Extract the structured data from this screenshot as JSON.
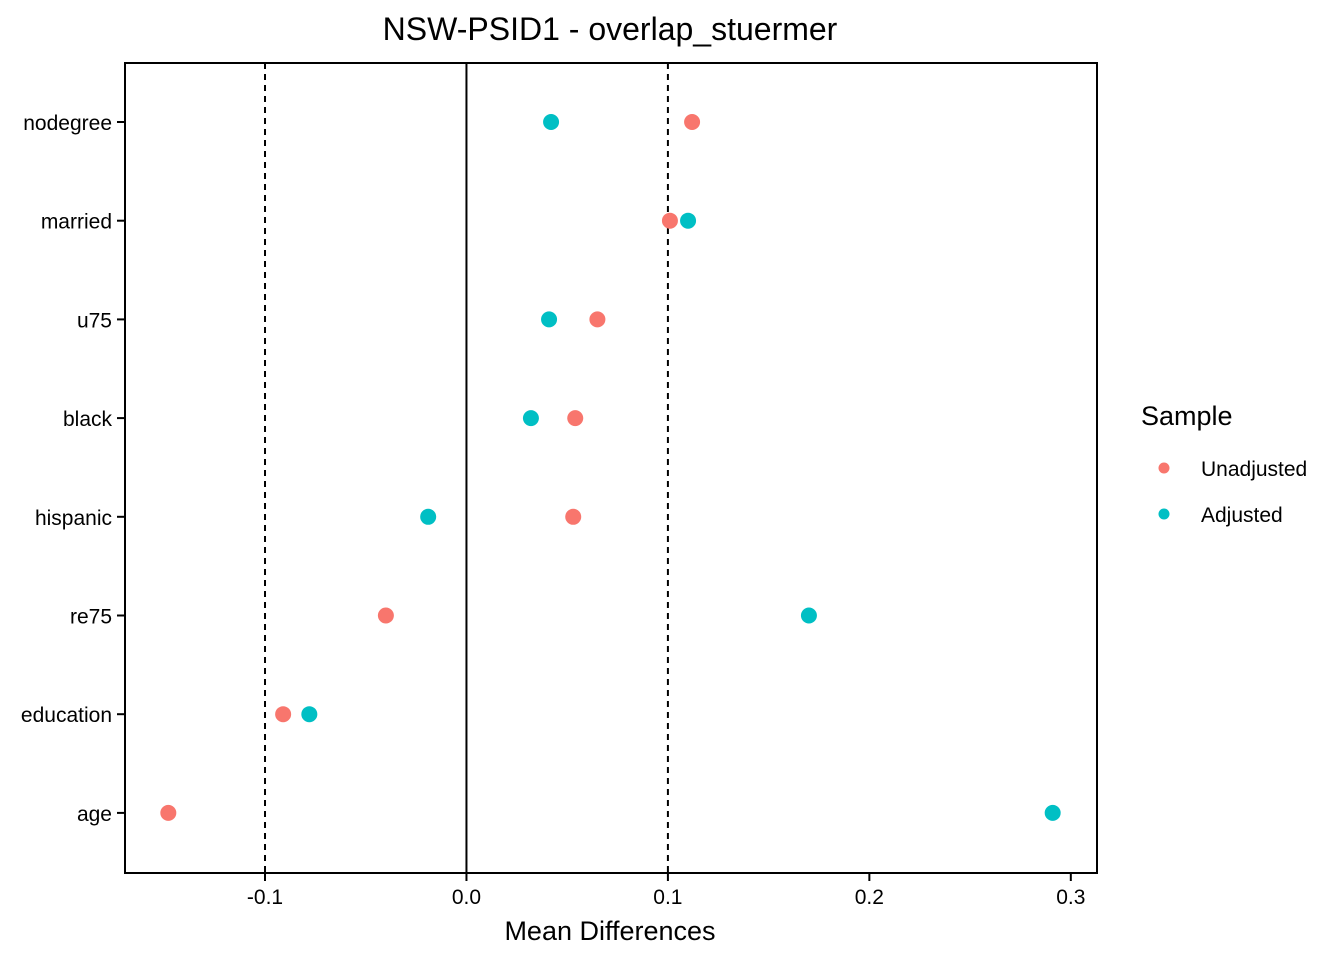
{
  "chart_data": {
    "type": "scatter",
    "title": "NSW-PSID1 - overlap_stuermer",
    "xlabel": "Mean Differences",
    "ylabel": "",
    "categories": [
      "nodegree",
      "married",
      "u75",
      "black",
      "hispanic",
      "re75",
      "education",
      "age"
    ],
    "xlim": [
      -0.1695,
      0.313
    ],
    "x_ticks": [
      -0.1,
      0.0,
      0.1,
      0.2,
      0.3
    ],
    "x_tick_labels": [
      "-0.1",
      "0.0",
      "0.1",
      "0.2",
      "0.3"
    ],
    "reference_lines": [
      {
        "x": -0.1,
        "style": "dashed"
      },
      {
        "x": 0.0,
        "style": "solid"
      },
      {
        "x": 0.1,
        "style": "dashed"
      }
    ],
    "grid": false,
    "legend": {
      "title": "Sample",
      "position": "right"
    },
    "series": [
      {
        "name": "Unadjusted",
        "color": "#F8766D",
        "values": [
          0.112,
          0.101,
          0.065,
          0.054,
          0.053,
          -0.04,
          -0.091,
          -0.148
        ]
      },
      {
        "name": "Adjusted",
        "color": "#00BFC4",
        "values": [
          0.042,
          0.11,
          0.041,
          0.032,
          -0.019,
          0.17,
          -0.078,
          0.291
        ]
      }
    ]
  }
}
